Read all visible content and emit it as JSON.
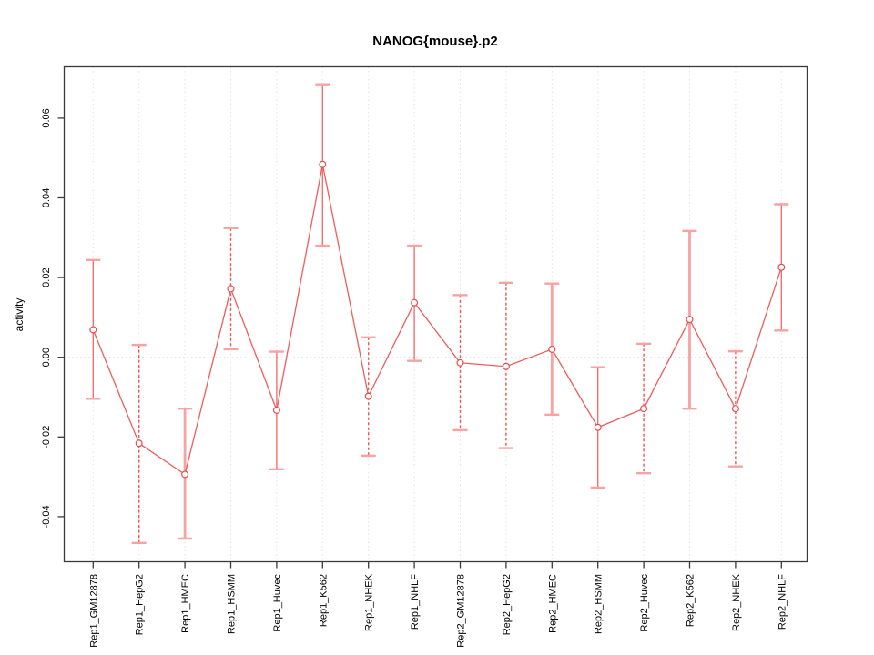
{
  "chart_data": {
    "type": "line",
    "title": "NANOG{mouse}.p2",
    "ylabel": "activity",
    "xlabel": "",
    "categories": [
      "Rep1_GM12878",
      "Rep1_HepG2",
      "Rep1_HMEC",
      "Rep1_HSMM",
      "Rep1_Huvec",
      "Rep1_K562",
      "Rep1_NHEK",
      "Rep1_NHLF",
      "Rep2_GM12878",
      "Rep2_HepG2",
      "Rep2_HMEC",
      "Rep2_HSMM",
      "Rep2_Huvec",
      "Rep2_K562",
      "Rep2_NHEK",
      "Rep2_NHLF"
    ],
    "series": [
      {
        "name": "activity",
        "values": [
          0.0069,
          -0.0216,
          -0.0294,
          0.0172,
          -0.0133,
          0.0484,
          -0.0098,
          0.0137,
          -0.0014,
          -0.0023,
          0.002,
          -0.0176,
          -0.0129,
          0.0095,
          -0.0129,
          0.0226
        ],
        "error_upper": [
          0.0244,
          0.0031,
          -0.0129,
          0.0324,
          0.0014,
          0.0685,
          0.005,
          0.028,
          0.0156,
          0.0187,
          0.0185,
          -0.0025,
          0.0034,
          0.0317,
          0.0015,
          0.0384
        ],
        "error_lower": [
          -0.0104,
          -0.0466,
          -0.0455,
          0.002,
          -0.0281,
          0.028,
          -0.0247,
          -0.0009,
          -0.0183,
          -0.0228,
          -0.0144,
          -0.0327,
          -0.0291,
          -0.0129,
          -0.0274,
          0.0067
        ]
      }
    ],
    "bar_styles": [
      "solid",
      "dashed",
      "solid",
      "dashed",
      "solid",
      "solid",
      "dashed",
      "solid",
      "dashed",
      "dashed",
      "solid",
      "solid",
      "dashed",
      "solid",
      "dashed",
      "solid"
    ],
    "bar_weights": [
      "thin",
      "thin",
      "thick",
      "thin",
      "thin",
      "thin",
      "thin",
      "thin",
      "thin",
      "thin",
      "thick",
      "thin",
      "thin",
      "thick",
      "thin",
      "thin"
    ],
    "yticks": [
      -0.04,
      -0.02,
      0.0,
      0.02,
      0.04,
      0.06
    ],
    "ylim": [
      -0.0512,
      0.0731
    ],
    "grid": {
      "vertical_dotted": true,
      "horizontal_zero_dotted": true
    },
    "legend_position": "none",
    "colors": {
      "line": "#ef5b5b",
      "point_stroke": "#e84c4c",
      "point_fill": "#ffffff",
      "bar_solid": "#f37070",
      "bar_thick": "#f8a2a2",
      "bar_dashed": "#ee5555",
      "cap": "#f8a2a2",
      "grid": "#e2e2e2",
      "zero_line": "#d8d8d8",
      "axis": "#3a3a3a"
    }
  }
}
